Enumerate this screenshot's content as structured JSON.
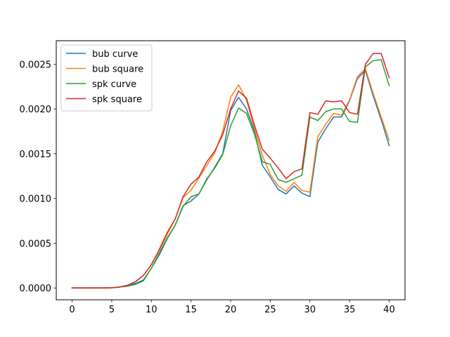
{
  "chart_data": {
    "type": "line",
    "title": "",
    "xlabel": "",
    "ylabel": "",
    "xlim": [
      -2,
      42
    ],
    "ylim": [
      -0.000132,
      0.002762
    ],
    "xticks": [
      0,
      5,
      10,
      15,
      20,
      25,
      30,
      35,
      40
    ],
    "xtick_labels": [
      "0",
      "5",
      "10",
      "15",
      "20",
      "25",
      "30",
      "35",
      "40"
    ],
    "yticks": [
      0,
      0.0005,
      0.001,
      0.0015,
      0.002,
      0.0025
    ],
    "ytick_labels": [
      "0.0000",
      "0.0005",
      "0.0010",
      "0.0015",
      "0.0020",
      "0.0025"
    ],
    "grid": false,
    "legend_position": "upper-left",
    "x": [
      0,
      1,
      2,
      3,
      4,
      5,
      6,
      7,
      8,
      9,
      10,
      11,
      12,
      13,
      14,
      15,
      16,
      17,
      18,
      19,
      20,
      21,
      22,
      23,
      24,
      25,
      26,
      27,
      28,
      29,
      30,
      31,
      32,
      33,
      34,
      35,
      36,
      37,
      38,
      39,
      40
    ],
    "series": [
      {
        "name": "bub curve",
        "color": "#1f77b4",
        "values": [
          0,
          0,
          0,
          0,
          0,
          2e-06,
          1e-05,
          3e-05,
          5e-05,
          9e-05,
          0.00022,
          0.00037,
          0.00055,
          0.0007,
          0.00092,
          0.00097,
          0.00105,
          0.00121,
          0.00135,
          0.0015,
          0.00198,
          0.00213,
          0.002,
          0.00175,
          0.00137,
          0.00124,
          0.0011,
          0.00105,
          0.00114,
          0.00106,
          0.00102,
          0.00163,
          0.00178,
          0.00191,
          0.00191,
          0.00209,
          0.00234,
          0.00243,
          0.00214,
          0.00188,
          0.00159
        ]
      },
      {
        "name": "bub square",
        "color": "#ff7f0e",
        "values": [
          0,
          0,
          0,
          0,
          0,
          2e-06,
          1e-05,
          3e-05,
          7e-05,
          0.00014,
          0.00026,
          0.00042,
          0.0006,
          0.00077,
          0.00101,
          0.00109,
          0.00123,
          0.00137,
          0.00151,
          0.00175,
          0.00213,
          0.00227,
          0.0021,
          0.00178,
          0.00148,
          0.00127,
          0.00114,
          0.00108,
          0.00118,
          0.00109,
          0.00107,
          0.00169,
          0.00183,
          0.00195,
          0.00193,
          0.0021,
          0.00236,
          0.00245,
          0.00217,
          0.00191,
          0.00165
        ]
      },
      {
        "name": "spk curve",
        "color": "#2ca02c",
        "values": [
          0,
          0,
          0,
          0,
          0,
          2e-06,
          1e-05,
          2e-05,
          4e-05,
          8e-05,
          0.00022,
          0.00039,
          0.00056,
          0.0007,
          0.00091,
          0.00102,
          0.00105,
          0.00122,
          0.00134,
          0.00149,
          0.00181,
          0.00201,
          0.00195,
          0.00172,
          0.00141,
          0.00138,
          0.00121,
          0.00118,
          0.00122,
          0.00126,
          0.00191,
          0.00187,
          0.00197,
          0.002,
          0.002,
          0.00186,
          0.00185,
          0.00247,
          0.00254,
          0.00255,
          0.00226
        ]
      },
      {
        "name": "spk square",
        "color": "#d62728",
        "values": [
          0,
          0,
          0,
          0,
          0,
          2e-06,
          1e-05,
          3e-05,
          7e-05,
          0.00014,
          0.00026,
          0.00043,
          0.00062,
          0.00077,
          0.00102,
          0.00116,
          0.00124,
          0.00141,
          0.00153,
          0.00171,
          0.002,
          0.0022,
          0.00212,
          0.00182,
          0.00155,
          0.00145,
          0.00134,
          0.00122,
          0.0013,
          0.00133,
          0.00196,
          0.00194,
          0.00209,
          0.00208,
          0.00209,
          0.00196,
          0.00194,
          0.0025,
          0.00262,
          0.00262,
          0.00235
        ]
      }
    ]
  }
}
